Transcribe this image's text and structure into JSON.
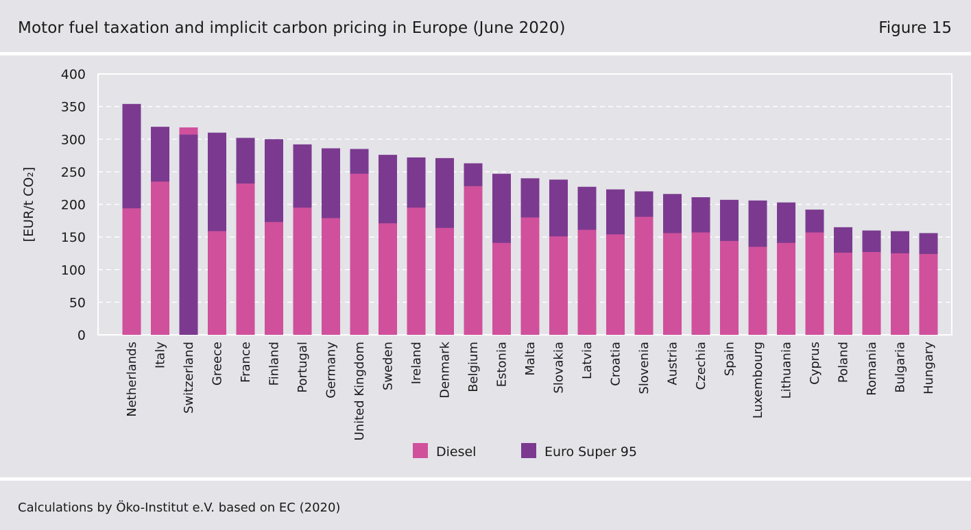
{
  "header": {
    "title": "Motor fuel taxation and implicit carbon pricing in Europe (June 2020)",
    "figure_label": "Figure 15"
  },
  "footer": {
    "source": "Calculations by Öko-Institut e.V. based on EC (2020)"
  },
  "colors": {
    "diesel": "#d0509c",
    "euro_super_95": "#7b3a8f",
    "background": "#e3e3e8",
    "plot_border": "#ffffff",
    "gridline": "#ffffff"
  },
  "chart_data": {
    "type": "bar",
    "ylabel": "[EUR/t CO₂]",
    "ylim": [
      0,
      400
    ],
    "yticks": [
      0,
      50,
      100,
      150,
      200,
      250,
      300,
      350,
      400
    ],
    "grid": true,
    "legend_placement": "bottom-center",
    "categories": [
      "Netherlands",
      "Italy",
      "Switzerland",
      "Greece",
      "France",
      "Finland",
      "Portugal",
      "Germany",
      "United Kingdom",
      "Sweden",
      "Ireland",
      "Denmark",
      "Belgium",
      "Estonia",
      "Malta",
      "Slovakia",
      "Latvia",
      "Croatia",
      "Slovenia",
      "Austria",
      "Czechia",
      "Spain",
      "Luxembourg",
      "Lithuania",
      "Cyprus",
      "Poland",
      "Romania",
      "Bulgaria",
      "Hungary"
    ],
    "series": [
      {
        "name": "Diesel",
        "values": [
          194,
          235,
          318,
          159,
          232,
          173,
          195,
          179,
          247,
          171,
          195,
          164,
          228,
          141,
          180,
          151,
          161,
          154,
          181,
          156,
          157,
          144,
          135,
          141,
          157,
          126,
          127,
          125,
          124
        ]
      },
      {
        "name": "Euro Super 95",
        "values": [
          354,
          319,
          307,
          310,
          302,
          300,
          292,
          286,
          285,
          276,
          272,
          271,
          263,
          247,
          240,
          238,
          227,
          223,
          220,
          216,
          211,
          207,
          206,
          203,
          192,
          165,
          160,
          159,
          156
        ]
      }
    ]
  }
}
